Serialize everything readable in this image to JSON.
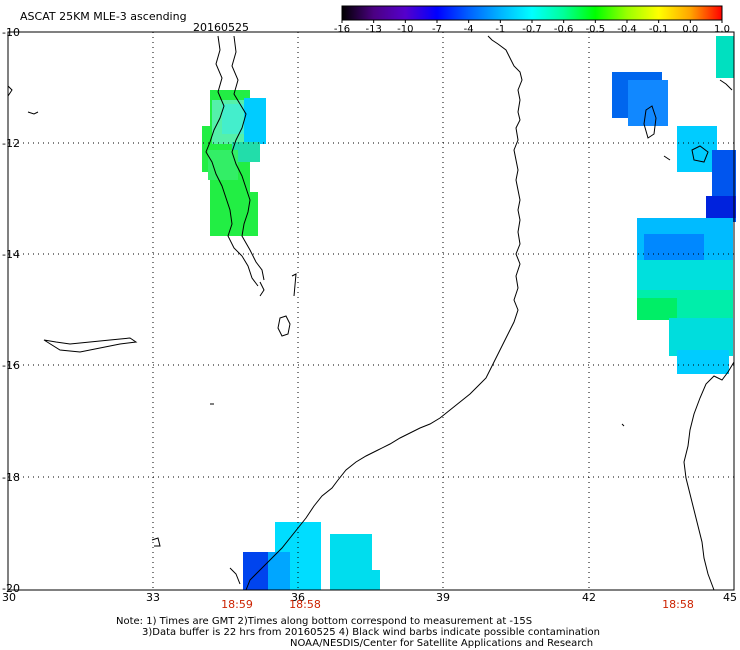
{
  "header": {
    "product": "ASCAT 25KM MLE-3 ascending",
    "date": "20160525"
  },
  "colorbar": {
    "labels": [
      "-16",
      "-13",
      "-10",
      "-7",
      "-4",
      "-1",
      "-0.7",
      "-0.6",
      "-0.5",
      "-0.4",
      "-0.1",
      "0.0",
      "1.0"
    ],
    "colors": [
      "#000000",
      "#4b0082",
      "#5500cc",
      "#0000ff",
      "#0060ff",
      "#00b4ff",
      "#00ffff",
      "#00ff99",
      "#00ff00",
      "#99ff00",
      "#ffff00",
      "#ffa500",
      "#ff0000"
    ]
  },
  "axes": {
    "lat_labels": [
      "-10",
      "-12",
      "-14",
      "-16",
      "-18",
      "-20"
    ],
    "lon_labels": [
      "30",
      "33",
      "36",
      "39",
      "42",
      "45"
    ],
    "lat_range": [
      -20,
      -10
    ],
    "lon_range": [
      30,
      45
    ]
  },
  "pass_times": [
    "18:59",
    "18:58",
    "18:58"
  ],
  "notes": {
    "line1": "Note: 1) Times are GMT 2)Times along bottom correspond to measurement at -15S",
    "line2": "3)Data buffer is 22 hrs from 20160525 4) Black wind barbs indicate possible contamination",
    "line3": "NOAA/NESDIS/Center for Satellite Applications and Research"
  },
  "colors": {
    "time_label": "#cc2200",
    "grid": "#000000",
    "coast": "#000000"
  }
}
